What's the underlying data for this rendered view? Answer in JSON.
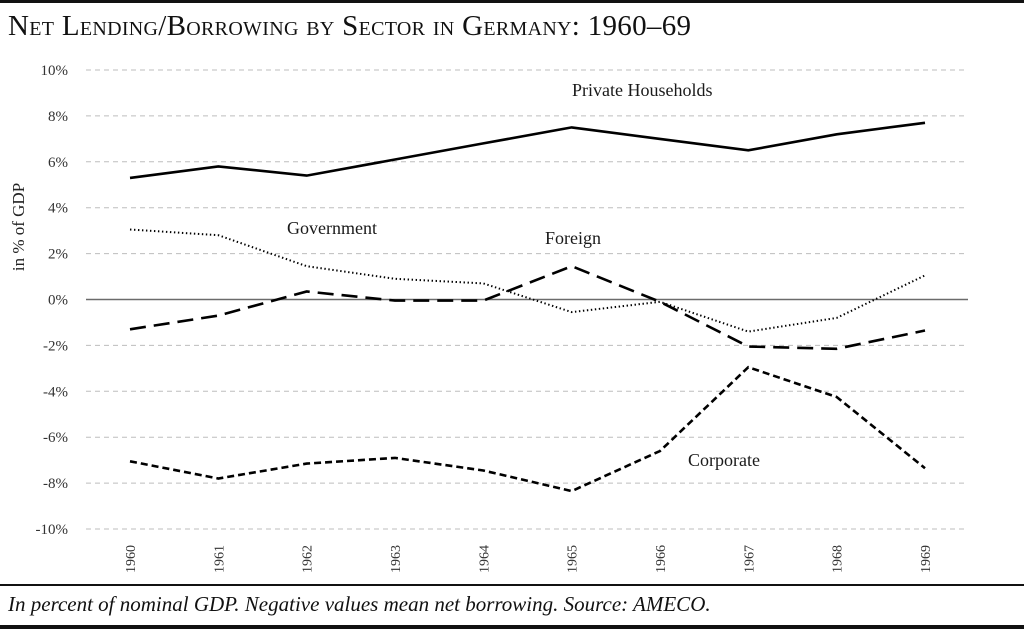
{
  "title": "Net Lending/Borrowing by Sector in Germany: 1960–69",
  "footnote": "In percent of nominal GDP. Negative values mean net borrowing. Source: AMECO.",
  "chart_data": {
    "type": "line",
    "title": "Net Lending/Borrowing by Sector in Germany: 1960–69",
    "xlabel": "",
    "ylabel": "in % of GDP",
    "x": [
      "1960",
      "1961",
      "1962",
      "1963",
      "1964",
      "1965",
      "1966",
      "1967",
      "1968",
      "1969"
    ],
    "ylim": [
      -10,
      10
    ],
    "yticks": [
      10,
      8,
      6,
      4,
      2,
      0,
      -2,
      -4,
      -6,
      -8,
      -10
    ],
    "ytick_labels": [
      "10%",
      "8%",
      "6%",
      "4%",
      "2%",
      "0%",
      "-2%",
      "-4%",
      "-6%",
      "-8%",
      "-10%"
    ],
    "grid": true,
    "legend": "inline labels",
    "series": [
      {
        "name": "Private Households",
        "style": "solid",
        "color": "#000000",
        "values": [
          5.3,
          5.8,
          5.4,
          6.1,
          6.8,
          7.5,
          7.0,
          6.5,
          7.2,
          7.7
        ]
      },
      {
        "name": "Government",
        "style": "dotted",
        "color": "#000000",
        "values": [
          3.05,
          2.8,
          1.45,
          0.9,
          0.7,
          -0.55,
          -0.1,
          -1.4,
          -0.8,
          1.05
        ]
      },
      {
        "name": "Foreign",
        "style": "long-dash",
        "color": "#000000",
        "values": [
          -1.3,
          -0.7,
          0.35,
          -0.05,
          -0.05,
          1.45,
          -0.1,
          -2.05,
          -2.15,
          -1.35
        ]
      },
      {
        "name": "Corporate",
        "style": "short-dash",
        "color": "#000000",
        "values": [
          -7.05,
          -7.8,
          -7.15,
          -6.9,
          -7.45,
          -8.35,
          -6.6,
          -2.95,
          -4.25,
          -7.35
        ]
      }
    ]
  }
}
